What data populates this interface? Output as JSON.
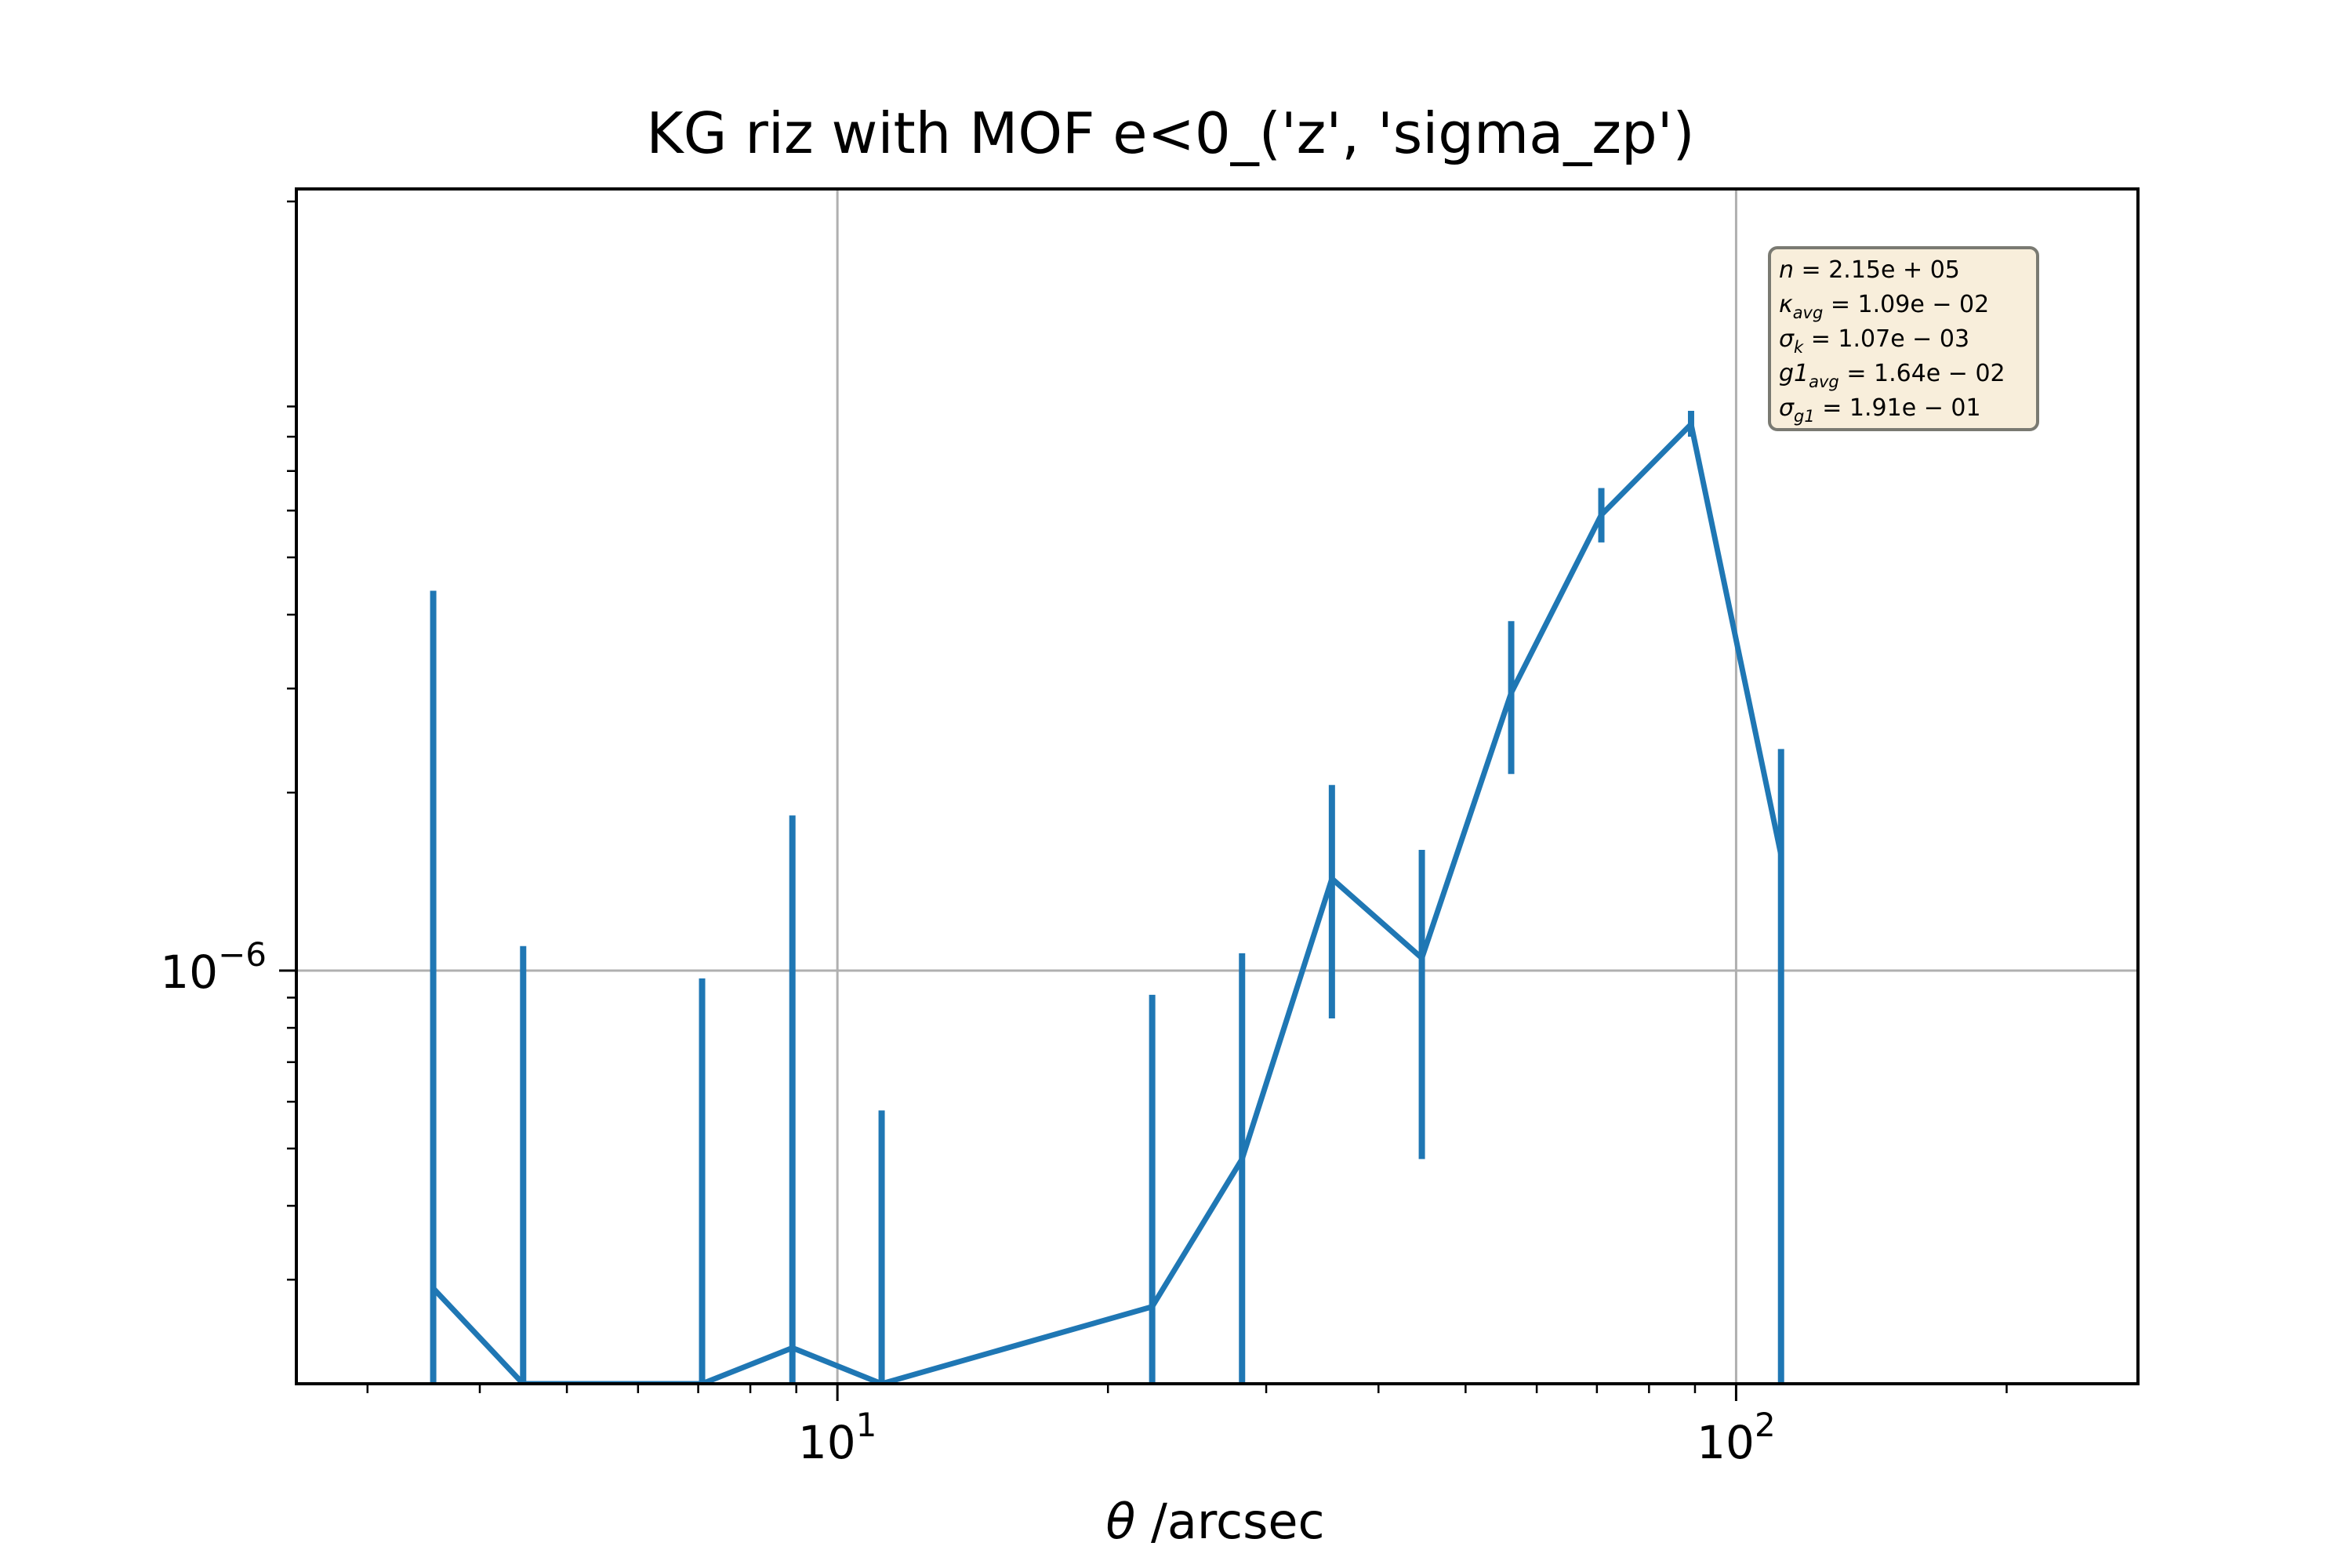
{
  "chart_data": {
    "type": "line",
    "title": "KG riz with MOF e<0_('z', 'sigma_zp')",
    "xlabel_symbol": "θ",
    "xlabel_text": " /arcsec",
    "ylabel": "",
    "x_scale": "log",
    "y_scale": "log",
    "xlim": [
      2.5,
      280
    ],
    "ylim": [
      2e-07,
      2.1e-05
    ],
    "grid": true,
    "x_ticks": [
      {
        "value": 10,
        "base": "10",
        "exp": "1"
      },
      {
        "value": 100,
        "base": "10",
        "exp": "2"
      }
    ],
    "y_ticks": [
      {
        "value": 1e-06,
        "base": "10",
        "exp": "−6"
      }
    ],
    "series": [
      {
        "color": "#1f77b4",
        "points": [
          {
            "x": 3.55,
            "y": 2.9e-07,
            "err_lo": 2.9e-07,
            "err_hi": 4.1e-06
          },
          {
            "x": 4.47,
            "y": 1e-07,
            "err_lo": 1e-07,
            "err_hi": 1e-06
          },
          {
            "x": 7.07,
            "y": 1e-07,
            "err_lo": 1e-07,
            "err_hi": 8.7e-07
          },
          {
            "x": 8.91,
            "y": 2.3e-07,
            "err_lo": 2.3e-07,
            "err_hi": 1.6e-06
          },
          {
            "x": 11.2,
            "y": 1e-07,
            "err_lo": 1e-07,
            "err_hi": 4.8e-07
          },
          {
            "x": 22.4,
            "y": 2.7e-07,
            "err_lo": 2.7e-07,
            "err_hi": 6.4e-07
          },
          {
            "x": 28.2,
            "y": 4.8e-07,
            "err_lo": 4.8e-07,
            "err_hi": 5.9e-07
          },
          {
            "x": 35.5,
            "y": 1.43e-06,
            "err_lo": 6e-07,
            "err_hi": 6.3e-07
          },
          {
            "x": 44.7,
            "y": 1.05e-06,
            "err_lo": 5.7e-07,
            "err_hi": 5.5e-07
          },
          {
            "x": 56.2,
            "y": 2.95e-06,
            "err_lo": 8e-07,
            "err_hi": 9.5e-07
          },
          {
            "x": 70.8,
            "y": 5.9e-06,
            "err_lo": 6e-07,
            "err_hi": 6.5e-07
          },
          {
            "x": 89.1,
            "y": 8.4e-06,
            "err_lo": 4e-07,
            "err_hi": 4.5e-07
          },
          {
            "x": 112.2,
            "y": 1.57e-06,
            "err_lo": 1.57e-06,
            "err_hi": 8e-07
          }
        ]
      }
    ],
    "annotation": {
      "placement": "top-right",
      "lines": [
        {
          "sym": "n",
          "sub": "",
          "val": " = 2.15e + 05"
        },
        {
          "sym": "κ",
          "sub": "avg",
          "val": " = 1.09e − 02"
        },
        {
          "sym": "σ",
          "sub": "k",
          "val": " = 1.07e − 03"
        },
        {
          "sym": "g1",
          "sub": "avg",
          "val": " = 1.64e − 02"
        },
        {
          "sym": "σ",
          "sub": "g1",
          "val": " = 1.91e − 01"
        }
      ],
      "bg_color": "#f8eedb",
      "border_color": "#7a7a72"
    }
  }
}
